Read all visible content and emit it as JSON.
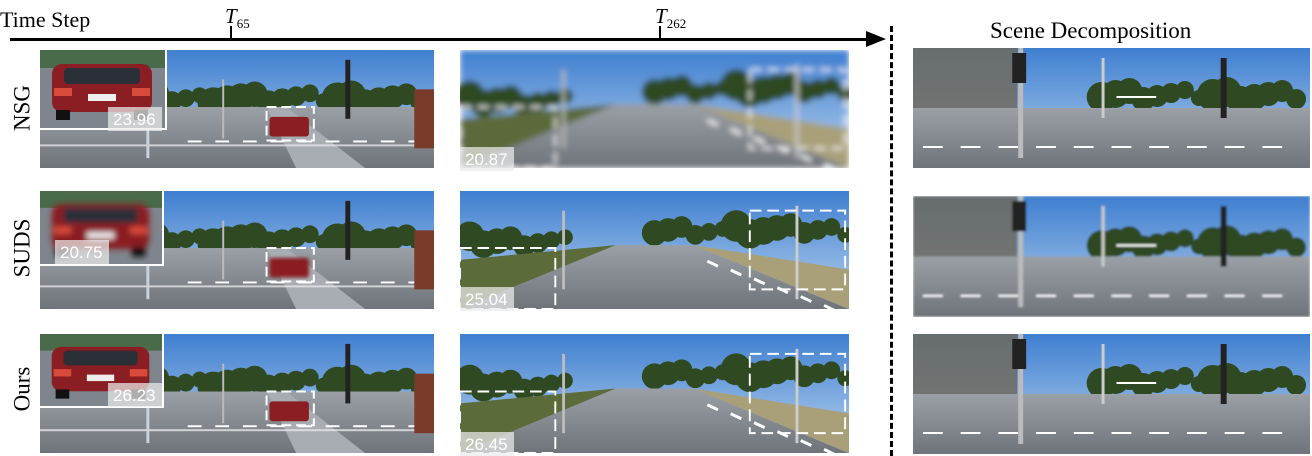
{
  "header": {
    "time_step_label": "Time Step",
    "tick_1": {
      "letter": "T",
      "sub": "65"
    },
    "tick_2": {
      "letter": "T",
      "sub": "262"
    },
    "decomposition_title": "Scene Decomposition"
  },
  "rows": [
    {
      "method": "NSG",
      "t65_psnr": "23.96",
      "t262_psnr": "20.87"
    },
    {
      "method": "SUDS",
      "t65_psnr": "20.75",
      "t262_psnr": "25.04"
    },
    {
      "method": "Ours",
      "t65_psnr": "26.23",
      "t262_psnr": "26.45"
    }
  ],
  "colors": {
    "sky": "#4d8fd6",
    "road": "#8d9299",
    "foliage": "#2f4a22",
    "car": "#8a1e22",
    "badge": "#ebebeb"
  }
}
